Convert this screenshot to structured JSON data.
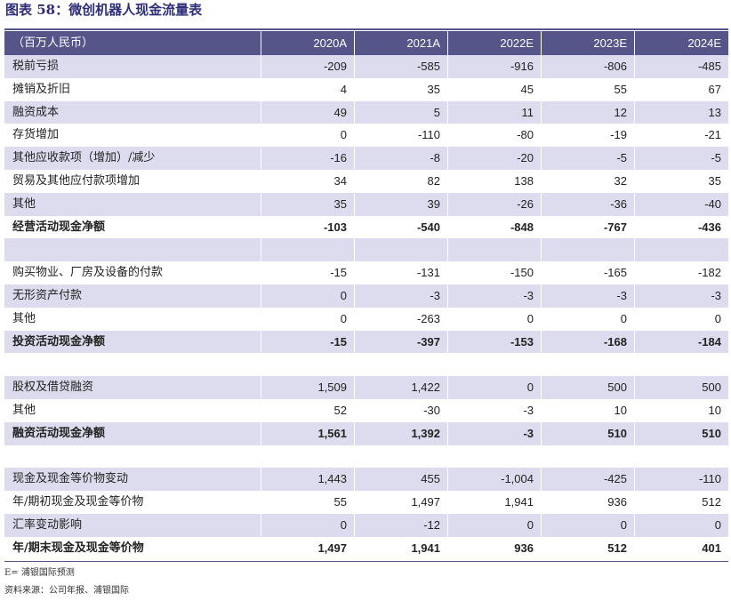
{
  "title": "图表 58：微创机器人现金流量表",
  "table": {
    "header": [
      "（百万人民币）",
      "2020A",
      "2021A",
      "2022E",
      "2023E",
      "2024E"
    ],
    "sections": [
      {
        "rows": [
          {
            "label": "税前亏损",
            "values": [
              "-209",
              "-585",
              "-916",
              "-806",
              "-485"
            ]
          },
          {
            "label": "摊销及折旧",
            "values": [
              "4",
              "35",
              "45",
              "55",
              "67"
            ]
          },
          {
            "label": "融资成本",
            "values": [
              "49",
              "5",
              "11",
              "12",
              "13"
            ]
          },
          {
            "label": "存货增加",
            "values": [
              "0",
              "-110",
              "-80",
              "-19",
              "-21"
            ]
          },
          {
            "label": "其他应收款项（增加）/减少",
            "values": [
              "-16",
              "-8",
              "-20",
              "-5",
              "-5"
            ]
          },
          {
            "label": "贸易及其他应付款项增加",
            "values": [
              "34",
              "82",
              "138",
              "32",
              "35"
            ]
          },
          {
            "label": "其他",
            "values": [
              "35",
              "39",
              "-26",
              "-36",
              "-40"
            ]
          },
          {
            "label": "经营活动现金净额",
            "values": [
              "-103",
              "-540",
              "-848",
              "-767",
              "-436"
            ],
            "bold": true
          }
        ]
      },
      {
        "rows": [
          {
            "label": "购买物业、厂房及设备的付款",
            "values": [
              "-15",
              "-131",
              "-150",
              "-165",
              "-182"
            ]
          },
          {
            "label": "无形资产付款",
            "values": [
              "0",
              "-3",
              "-3",
              "-3",
              "-3"
            ]
          },
          {
            "label": "其他",
            "values": [
              "0",
              "-263",
              "0",
              "0",
              "0"
            ]
          },
          {
            "label": "投资活动现金净额",
            "values": [
              "-15",
              "-397",
              "-153",
              "-168",
              "-184"
            ],
            "bold": true
          }
        ]
      },
      {
        "rows": [
          {
            "label": "股权及借贷融资",
            "values": [
              "1,509",
              "1,422",
              "0",
              "500",
              "500"
            ]
          },
          {
            "label": "其他",
            "values": [
              "52",
              "-30",
              "-3",
              "10",
              "10"
            ]
          },
          {
            "label": "融资活动现金净额",
            "values": [
              "1,561",
              "1,392",
              "-3",
              "510",
              "510"
            ],
            "bold": true
          }
        ]
      },
      {
        "rows": [
          {
            "label": "现金及现金等价物变动",
            "values": [
              "1,443",
              "455",
              "-1,004",
              "-425",
              "-110"
            ]
          },
          {
            "label": "年/期初现金及现金等价物",
            "values": [
              "55",
              "1,497",
              "1,941",
              "936",
              "512"
            ]
          },
          {
            "label": "汇率变动影响",
            "values": [
              "0",
              "-12",
              "0",
              "0",
              "0"
            ]
          },
          {
            "label": "年/期末现金及现金等价物",
            "values": [
              "1,497",
              "1,941",
              "936",
              "512",
              "401"
            ],
            "bold": true
          }
        ]
      }
    ]
  },
  "notes": [
    "E= 浦银国际预测",
    "资料来源：公司年报、浦银国际"
  ]
}
